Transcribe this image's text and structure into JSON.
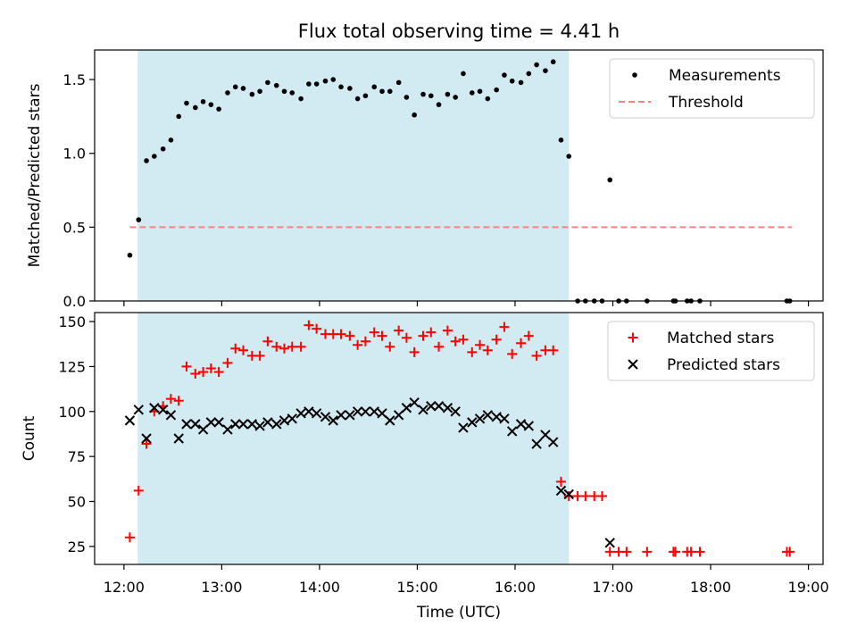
{
  "chart_data": {
    "title": "Flux total observing time = 4.41 h",
    "xlabel": "Time (UTC)",
    "x_axis": {
      "unit": "hours",
      "range": [
        11.7,
        19.15
      ],
      "ticks": [
        12,
        13,
        14,
        15,
        16,
        17,
        18,
        19
      ],
      "tick_labels": [
        "12:00",
        "13:00",
        "14:00",
        "15:00",
        "16:00",
        "17:00",
        "18:00",
        "19:00"
      ]
    },
    "shaded_span": [
      12.14,
      16.55
    ],
    "colors": {
      "shade": "#add8e6",
      "measurements": "#000000",
      "threshold": "#ff8080",
      "matched": "#ff0000",
      "predicted": "#000000"
    },
    "charts": [
      {
        "type": "scatter",
        "ylabel": "Matched/Predicted stars",
        "ylim": [
          0,
          1.7
        ],
        "yticks": [
          0,
          0.5,
          1.0,
          1.5
        ],
        "ytick_labels": [
          "0.0",
          "0.5",
          "1.0",
          "1.5"
        ],
        "legend_position": "top-right",
        "legend": [
          "Measurements",
          "Threshold"
        ],
        "threshold": {
          "value": 0.5,
          "x_range": [
            12.06,
            18.83
          ]
        },
        "series": [
          {
            "name": "Measurements",
            "marker": "dot",
            "points": [
              [
                12.06,
                0.31
              ],
              [
                12.15,
                0.55
              ],
              [
                12.23,
                0.95
              ],
              [
                12.31,
                0.98
              ],
              [
                12.4,
                1.03
              ],
              [
                12.48,
                1.09
              ],
              [
                12.56,
                1.25
              ],
              [
                12.64,
                1.34
              ],
              [
                12.73,
                1.31
              ],
              [
                12.81,
                1.35
              ],
              [
                12.89,
                1.33
              ],
              [
                12.97,
                1.3
              ],
              [
                13.06,
                1.41
              ],
              [
                13.14,
                1.45
              ],
              [
                13.22,
                1.44
              ],
              [
                13.31,
                1.4
              ],
              [
                13.39,
                1.42
              ],
              [
                13.47,
                1.48
              ],
              [
                13.56,
                1.46
              ],
              [
                13.64,
                1.42
              ],
              [
                13.72,
                1.41
              ],
              [
                13.81,
                1.37
              ],
              [
                13.89,
                1.47
              ],
              [
                13.97,
                1.47
              ],
              [
                14.06,
                1.49
              ],
              [
                14.14,
                1.5
              ],
              [
                14.22,
                1.45
              ],
              [
                14.31,
                1.44
              ],
              [
                14.39,
                1.37
              ],
              [
                14.47,
                1.39
              ],
              [
                14.56,
                1.45
              ],
              [
                14.64,
                1.42
              ],
              [
                14.72,
                1.42
              ],
              [
                14.81,
                1.48
              ],
              [
                14.89,
                1.38
              ],
              [
                14.97,
                1.26
              ],
              [
                15.06,
                1.4
              ],
              [
                15.14,
                1.39
              ],
              [
                15.22,
                1.33
              ],
              [
                15.31,
                1.4
              ],
              [
                15.39,
                1.38
              ],
              [
                15.47,
                1.54
              ],
              [
                15.56,
                1.41
              ],
              [
                15.64,
                1.42
              ],
              [
                15.72,
                1.37
              ],
              [
                15.81,
                1.43
              ],
              [
                15.89,
                1.53
              ],
              [
                15.97,
                1.49
              ],
              [
                16.06,
                1.48
              ],
              [
                16.14,
                1.54
              ],
              [
                16.22,
                1.6
              ],
              [
                16.31,
                1.56
              ],
              [
                16.39,
                1.62
              ],
              [
                16.47,
                1.09
              ],
              [
                16.55,
                0.98
              ],
              [
                16.64,
                0
              ],
              [
                16.72,
                0
              ],
              [
                16.81,
                0
              ],
              [
                16.89,
                0
              ],
              [
                16.97,
                0.82
              ],
              [
                17.06,
                0
              ],
              [
                17.14,
                0
              ],
              [
                17.35,
                0
              ],
              [
                17.62,
                0
              ],
              [
                17.64,
                0
              ],
              [
                17.76,
                0
              ],
              [
                17.8,
                0
              ],
              [
                17.89,
                0
              ],
              [
                18.78,
                0
              ],
              [
                18.81,
                0
              ]
            ]
          }
        ]
      },
      {
        "type": "scatter",
        "ylabel": "Count",
        "ylim": [
          15,
          155
        ],
        "yticks": [
          25,
          50,
          75,
          100,
          125,
          150
        ],
        "ytick_labels": [
          "25",
          "50",
          "75",
          "100",
          "125",
          "150"
        ],
        "legend_position": "top-right",
        "legend": [
          "Matched stars",
          "Predicted stars"
        ],
        "series": [
          {
            "name": "Matched stars",
            "marker": "plus",
            "points": [
              [
                12.06,
                30
              ],
              [
                12.15,
                56
              ],
              [
                12.23,
                82
              ],
              [
                12.31,
                100
              ],
              [
                12.4,
                103
              ],
              [
                12.48,
                107
              ],
              [
                12.56,
                106
              ],
              [
                12.64,
                125
              ],
              [
                12.73,
                121
              ],
              [
                12.81,
                122
              ],
              [
                12.89,
                124
              ],
              [
                12.97,
                122
              ],
              [
                13.06,
                127
              ],
              [
                13.14,
                135
              ],
              [
                13.22,
                134
              ],
              [
                13.31,
                131
              ],
              [
                13.39,
                131
              ],
              [
                13.47,
                139
              ],
              [
                13.56,
                136
              ],
              [
                13.64,
                135
              ],
              [
                13.72,
                136
              ],
              [
                13.81,
                136
              ],
              [
                13.89,
                148
              ],
              [
                13.97,
                146
              ],
              [
                14.06,
                143
              ],
              [
                14.14,
                143
              ],
              [
                14.22,
                143
              ],
              [
                14.31,
                142
              ],
              [
                14.39,
                137
              ],
              [
                14.47,
                139
              ],
              [
                14.56,
                144
              ],
              [
                14.64,
                142
              ],
              [
                14.72,
                136
              ],
              [
                14.81,
                145
              ],
              [
                14.89,
                141
              ],
              [
                14.97,
                133
              ],
              [
                15.06,
                142
              ],
              [
                15.14,
                144
              ],
              [
                15.22,
                136
              ],
              [
                15.31,
                145
              ],
              [
                15.39,
                139
              ],
              [
                15.47,
                140
              ],
              [
                15.56,
                133
              ],
              [
                15.64,
                137
              ],
              [
                15.72,
                134
              ],
              [
                15.81,
                140
              ],
              [
                15.89,
                147
              ],
              [
                15.97,
                132
              ],
              [
                16.06,
                138
              ],
              [
                16.14,
                142
              ],
              [
                16.22,
                131
              ],
              [
                16.31,
                134
              ],
              [
                16.39,
                134
              ],
              [
                16.47,
                61
              ],
              [
                16.55,
                53
              ],
              [
                16.64,
                53
              ],
              [
                16.72,
                53
              ],
              [
                16.81,
                53
              ],
              [
                16.89,
                53
              ],
              [
                16.97,
                22
              ],
              [
                17.06,
                22
              ],
              [
                17.14,
                22
              ],
              [
                17.35,
                22
              ],
              [
                17.62,
                22
              ],
              [
                17.64,
                22
              ],
              [
                17.76,
                22
              ],
              [
                17.8,
                22
              ],
              [
                17.89,
                22
              ],
              [
                18.78,
                22
              ],
              [
                18.81,
                22
              ]
            ]
          },
          {
            "name": "Predicted stars",
            "marker": "x",
            "points": [
              [
                12.06,
                95
              ],
              [
                12.15,
                101
              ],
              [
                12.23,
                85
              ],
              [
                12.31,
                102
              ],
              [
                12.4,
                101
              ],
              [
                12.48,
                98
              ],
              [
                12.56,
                85
              ],
              [
                12.64,
                93
              ],
              [
                12.73,
                93
              ],
              [
                12.81,
                90
              ],
              [
                12.89,
                94
              ],
              [
                12.97,
                94
              ],
              [
                13.06,
                90
              ],
              [
                13.14,
                93
              ],
              [
                13.22,
                93
              ],
              [
                13.31,
                93
              ],
              [
                13.39,
                92
              ],
              [
                13.47,
                94
              ],
              [
                13.56,
                93
              ],
              [
                13.64,
                95
              ],
              [
                13.72,
                96
              ],
              [
                13.81,
                99
              ],
              [
                13.89,
                100
              ],
              [
                13.97,
                99
              ],
              [
                14.06,
                97
              ],
              [
                14.14,
                95
              ],
              [
                14.22,
                98
              ],
              [
                14.31,
                98
              ],
              [
                14.39,
                100
              ],
              [
                14.47,
                100
              ],
              [
                14.56,
                100
              ],
              [
                14.64,
                99
              ],
              [
                14.72,
                95
              ],
              [
                14.81,
                98
              ],
              [
                14.89,
                102
              ],
              [
                14.97,
                105
              ],
              [
                15.06,
                101
              ],
              [
                15.14,
                103
              ],
              [
                15.22,
                103
              ],
              [
                15.31,
                102
              ],
              [
                15.39,
                100
              ],
              [
                15.47,
                91
              ],
              [
                15.56,
                94
              ],
              [
                15.64,
                96
              ],
              [
                15.72,
                98
              ],
              [
                15.81,
                97
              ],
              [
                15.89,
                96
              ],
              [
                15.97,
                89
              ],
              [
                16.06,
                93
              ],
              [
                16.14,
                92
              ],
              [
                16.22,
                82
              ],
              [
                16.31,
                87
              ],
              [
                16.39,
                83
              ],
              [
                16.47,
                56
              ],
              [
                16.55,
                54
              ],
              [
                16.97,
                27
              ]
            ]
          }
        ]
      }
    ]
  }
}
